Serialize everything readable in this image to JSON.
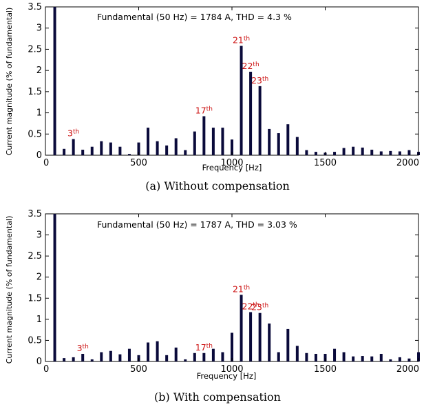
{
  "chart_data": [
    {
      "type": "bar",
      "caption": "(a) Without compensation",
      "annotation": "Fundamental (50 Hz) = 1784 A, THD = 4.3 %",
      "xlabel": "Frequency [Hz]",
      "ylabel": "Current magnitude (% of fundamental)",
      "xlim": [
        0,
        2000
      ],
      "ylim": [
        0,
        3.5
      ],
      "xticks": [
        0,
        500,
        1000,
        1500,
        2000
      ],
      "yticks": [
        0,
        0.5,
        1,
        1.5,
        2,
        2.5,
        3,
        3.5
      ],
      "xtick_labels": [
        "0",
        "500",
        "1000",
        "1500",
        "2000"
      ],
      "ytick_labels": [
        "0",
        "0.5",
        "1",
        "1.5",
        "2",
        "2.5",
        "3",
        "3.5"
      ],
      "grid": false,
      "color": "#0a0a3a",
      "x": [
        50,
        100,
        150,
        200,
        250,
        300,
        350,
        400,
        450,
        500,
        550,
        600,
        650,
        700,
        750,
        800,
        850,
        900,
        950,
        1000,
        1050,
        1100,
        1150,
        1200,
        1250,
        1300,
        1350,
        1400,
        1450,
        1500,
        1550,
        1600,
        1650,
        1700,
        1750,
        1800,
        1850,
        1900,
        1950,
        2000
      ],
      "values": [
        3.5,
        0.15,
        0.38,
        0.13,
        0.2,
        0.33,
        0.3,
        0.2,
        0.03,
        0.3,
        0.65,
        0.33,
        0.23,
        0.4,
        0.12,
        0.56,
        0.92,
        0.65,
        0.65,
        0.37,
        2.58,
        1.97,
        1.63,
        0.62,
        0.52,
        0.73,
        0.43,
        0.12,
        0.08,
        0.06,
        0.08,
        0.17,
        0.2,
        0.18,
        0.13,
        0.09,
        0.1,
        0.09,
        0.12,
        0.08
      ],
      "labels": [
        {
          "text": "3",
          "sup": "th",
          "x": 150
        },
        {
          "text": "17",
          "sup": "th",
          "x": 850
        },
        {
          "text": "21",
          "sup": "th",
          "x": 1050
        },
        {
          "text": "22",
          "sup": "th",
          "x": 1100
        },
        {
          "text": "23",
          "sup": "th",
          "x": 1150
        }
      ]
    },
    {
      "type": "bar",
      "caption": "(b) With compensation",
      "annotation": "Fundamental (50 Hz) = 1787 A, THD = 3.03 %",
      "xlabel": "Frequency [Hz]",
      "ylabel": "Current magnitude (% of fundamental)",
      "xlim": [
        0,
        2000
      ],
      "ylim": [
        0,
        3.5
      ],
      "xticks": [
        0,
        500,
        1000,
        1500,
        2000
      ],
      "yticks": [
        0,
        0.5,
        1,
        1.5,
        2,
        2.5,
        3,
        3.5
      ],
      "xtick_labels": [
        "0",
        "500",
        "1000",
        "1500",
        "2000"
      ],
      "ytick_labels": [
        "0",
        "0.5",
        "1",
        "1.5",
        "2",
        "2.5",
        "3",
        "3.5"
      ],
      "grid": false,
      "color": "#0a0a3a",
      "x": [
        50,
        100,
        150,
        200,
        250,
        300,
        350,
        400,
        450,
        500,
        550,
        600,
        650,
        700,
        750,
        800,
        850,
        900,
        950,
        1000,
        1050,
        1100,
        1150,
        1200,
        1250,
        1300,
        1350,
        1400,
        1450,
        1500,
        1550,
        1600,
        1650,
        1700,
        1750,
        1800,
        1850,
        1900,
        1950,
        2000
      ],
      "values": [
        3.5,
        0.08,
        0.1,
        0.18,
        0.05,
        0.22,
        0.25,
        0.17,
        0.3,
        0.15,
        0.45,
        0.48,
        0.15,
        0.33,
        0.05,
        0.2,
        0.2,
        0.3,
        0.22,
        0.68,
        1.58,
        1.17,
        1.15,
        0.9,
        0.22,
        0.77,
        0.37,
        0.2,
        0.18,
        0.18,
        0.3,
        0.22,
        0.12,
        0.13,
        0.12,
        0.18,
        0.05,
        0.1,
        0.07,
        0.22
      ],
      "labels": [
        {
          "text": "3",
          "sup": "th",
          "x": 200
        },
        {
          "text": "17",
          "sup": "th",
          "x": 850
        },
        {
          "text": "21",
          "sup": "th",
          "x": 1050
        },
        {
          "text": "22",
          "sup": "th",
          "x": 1100
        },
        {
          "text": "23",
          "sup": "th",
          "x": 1150
        }
      ]
    }
  ]
}
